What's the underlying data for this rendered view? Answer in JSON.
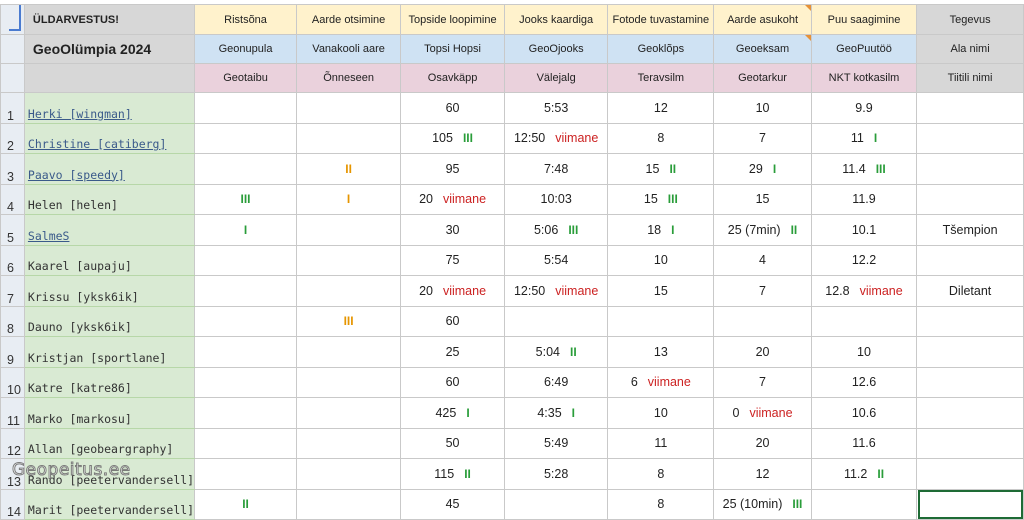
{
  "header": {
    "title1": "ÜLDARVESTUS!",
    "title2": "GeoOlümpia 2024",
    "events": [
      "Ristsõna",
      "Aarde otsimine",
      "Topside loopimine",
      "Jooks kaardiga",
      "Fotode tuvastamine",
      "Aarde asukoht",
      "Puu saagimine",
      "Tegevus"
    ],
    "fields": [
      "Geonupula",
      "Vanakooli aare",
      "Topsi Hopsi",
      "GeoOjooks",
      "Geoklõps",
      "Geoeksam",
      "GeoPuutöö",
      "Ala nimi"
    ],
    "titles": [
      "Geotaibu",
      "Õnneseen",
      "Osavkäpp",
      "Välejalg",
      "Teravsilm",
      "Geotarkur",
      "NKT kotkasilm",
      "Tiitili nimi"
    ]
  },
  "rows": [
    {
      "num": "1",
      "name": "Herki [wingman]",
      "c1": {
        "v": "",
        "r": ""
      },
      "c2": {
        "v": "",
        "r": ""
      },
      "c3": {
        "v": "60",
        "r": ""
      },
      "c4": {
        "v": "5:53",
        "r": ""
      },
      "c5": {
        "v": "12",
        "r": ""
      },
      "c6": {
        "v": "10",
        "r": ""
      },
      "c7": {
        "v": "9.9",
        "r": ""
      },
      "remark": ""
    },
    {
      "num": "2",
      "name": "Christine [catiberg]",
      "c1": {
        "v": "",
        "r": ""
      },
      "c2": {
        "v": "",
        "r": ""
      },
      "c3": {
        "v": "105",
        "r": "III"
      },
      "c4": {
        "v": "12:50",
        "r": "viimane"
      },
      "c5": {
        "v": "8",
        "r": ""
      },
      "c6": {
        "v": "7",
        "r": ""
      },
      "c7": {
        "v": "11",
        "r": "I"
      },
      "remark": ""
    },
    {
      "num": "3",
      "name": "Paavo [speedy]",
      "c1": {
        "v": "",
        "r": ""
      },
      "c2": {
        "v": "",
        "r": "II"
      },
      "c3": {
        "v": "95",
        "r": ""
      },
      "c4": {
        "v": "7:48",
        "r": ""
      },
      "c5": {
        "v": "15",
        "r": "II"
      },
      "c6": {
        "v": "29",
        "r": "I"
      },
      "c7": {
        "v": "11.4",
        "r": "III"
      },
      "remark": ""
    },
    {
      "num": "4",
      "name": "Helen [helen]",
      "c1": {
        "v": "",
        "r": "III"
      },
      "c2": {
        "v": "",
        "r": "I"
      },
      "c3": {
        "v": "20",
        "r": "viimane"
      },
      "c4": {
        "v": "10:03",
        "r": ""
      },
      "c5": {
        "v": "15",
        "r": "III"
      },
      "c6": {
        "v": "15",
        "r": ""
      },
      "c7": {
        "v": "11.9",
        "r": ""
      },
      "remark": ""
    },
    {
      "num": "5",
      "name": "SalmeS",
      "c1": {
        "v": "",
        "r": "I"
      },
      "c2": {
        "v": "",
        "r": ""
      },
      "c3": {
        "v": "30",
        "r": ""
      },
      "c4": {
        "v": "5:06",
        "r": "III"
      },
      "c5": {
        "v": "18",
        "r": "I"
      },
      "c6": {
        "v": "25 (7min)",
        "r": "II"
      },
      "c7": {
        "v": "10.1",
        "r": ""
      },
      "remark": "Tšempion"
    },
    {
      "num": "6",
      "name": "Kaarel [aupaju]",
      "c1": {
        "v": "",
        "r": ""
      },
      "c2": {
        "v": "",
        "r": ""
      },
      "c3": {
        "v": "75",
        "r": ""
      },
      "c4": {
        "v": "5:54",
        "r": ""
      },
      "c5": {
        "v": "10",
        "r": ""
      },
      "c6": {
        "v": "4",
        "r": ""
      },
      "c7": {
        "v": "12.2",
        "r": ""
      },
      "remark": ""
    },
    {
      "num": "7",
      "name": "Krissu [yksk6ik]",
      "c1": {
        "v": "",
        "r": ""
      },
      "c2": {
        "v": "",
        "r": ""
      },
      "c3": {
        "v": "20",
        "r": "viimane"
      },
      "c4": {
        "v": "12:50",
        "r": "viimane"
      },
      "c5": {
        "v": "15",
        "r": ""
      },
      "c6": {
        "v": "7",
        "r": ""
      },
      "c7": {
        "v": "12.8",
        "r": "viimane"
      },
      "remark": "Diletant"
    },
    {
      "num": "8",
      "name": "Dauno [yksk6ik]",
      "c1": {
        "v": "",
        "r": ""
      },
      "c2": {
        "v": "",
        "r": "III"
      },
      "c3": {
        "v": "60",
        "r": ""
      },
      "c4": {
        "v": "",
        "r": ""
      },
      "c5": {
        "v": "",
        "r": ""
      },
      "c6": {
        "v": "",
        "r": ""
      },
      "c7": {
        "v": "",
        "r": ""
      },
      "remark": ""
    },
    {
      "num": "9",
      "name": "Kristjan [sportlane]",
      "c1": {
        "v": "",
        "r": ""
      },
      "c2": {
        "v": "",
        "r": ""
      },
      "c3": {
        "v": "25",
        "r": ""
      },
      "c4": {
        "v": "5:04",
        "r": "II"
      },
      "c5": {
        "v": "13",
        "r": ""
      },
      "c6": {
        "v": "20",
        "r": ""
      },
      "c7": {
        "v": "10",
        "r": ""
      },
      "remark": ""
    },
    {
      "num": "10",
      "name": "Katre [katre86]",
      "c1": {
        "v": "",
        "r": ""
      },
      "c2": {
        "v": "",
        "r": ""
      },
      "c3": {
        "v": "60",
        "r": ""
      },
      "c4": {
        "v": "6:49",
        "r": ""
      },
      "c5": {
        "v": "6",
        "r": "viimane"
      },
      "c6": {
        "v": "7",
        "r": ""
      },
      "c7": {
        "v": "12.6",
        "r": ""
      },
      "remark": ""
    },
    {
      "num": "11",
      "name": "Marko [markosu]",
      "c1": {
        "v": "",
        "r": ""
      },
      "c2": {
        "v": "",
        "r": ""
      },
      "c3": {
        "v": "425",
        "r": "I"
      },
      "c4": {
        "v": "4:35",
        "r": "I"
      },
      "c5": {
        "v": "10",
        "r": ""
      },
      "c6": {
        "v": "0",
        "r": "viimane"
      },
      "c7": {
        "v": "10.6",
        "r": ""
      },
      "remark": ""
    },
    {
      "num": "12",
      "name": "Allan [geobeargraphy]",
      "c1": {
        "v": "",
        "r": ""
      },
      "c2": {
        "v": "",
        "r": ""
      },
      "c3": {
        "v": "50",
        "r": ""
      },
      "c4": {
        "v": "5:49",
        "r": ""
      },
      "c5": {
        "v": "11",
        "r": ""
      },
      "c6": {
        "v": "20",
        "r": ""
      },
      "c7": {
        "v": "11.6",
        "r": ""
      },
      "remark": ""
    },
    {
      "num": "13",
      "name": "Rando [peetervandersell]",
      "c1": {
        "v": "",
        "r": ""
      },
      "c2": {
        "v": "",
        "r": ""
      },
      "c3": {
        "v": "115",
        "r": "II"
      },
      "c4": {
        "v": "5:28",
        "r": ""
      },
      "c5": {
        "v": "8",
        "r": ""
      },
      "c6": {
        "v": "12",
        "r": ""
      },
      "c7": {
        "v": "11.2",
        "r": "II"
      },
      "remark": ""
    },
    {
      "num": "14",
      "name": "Marit [peetervandersell]",
      "c1": {
        "v": "",
        "r": "II"
      },
      "c2": {
        "v": "",
        "r": ""
      },
      "c3": {
        "v": "45",
        "r": ""
      },
      "c4": {
        "v": "",
        "r": ""
      },
      "c5": {
        "v": "8",
        "r": ""
      },
      "c6": {
        "v": "25 (10min)",
        "r": "III"
      },
      "c7": {
        "v": "",
        "r": ""
      },
      "remark": ""
    }
  ],
  "linked_rows": [
    0,
    1,
    2,
    4
  ],
  "orange_rank_columns": [
    "c2"
  ],
  "watermark": "Geopeitus.ee",
  "colors": {
    "rank": "#2a9d3a",
    "rank_alt": "#e69500",
    "last": "#cc2222",
    "selected": "#1e6b35"
  }
}
